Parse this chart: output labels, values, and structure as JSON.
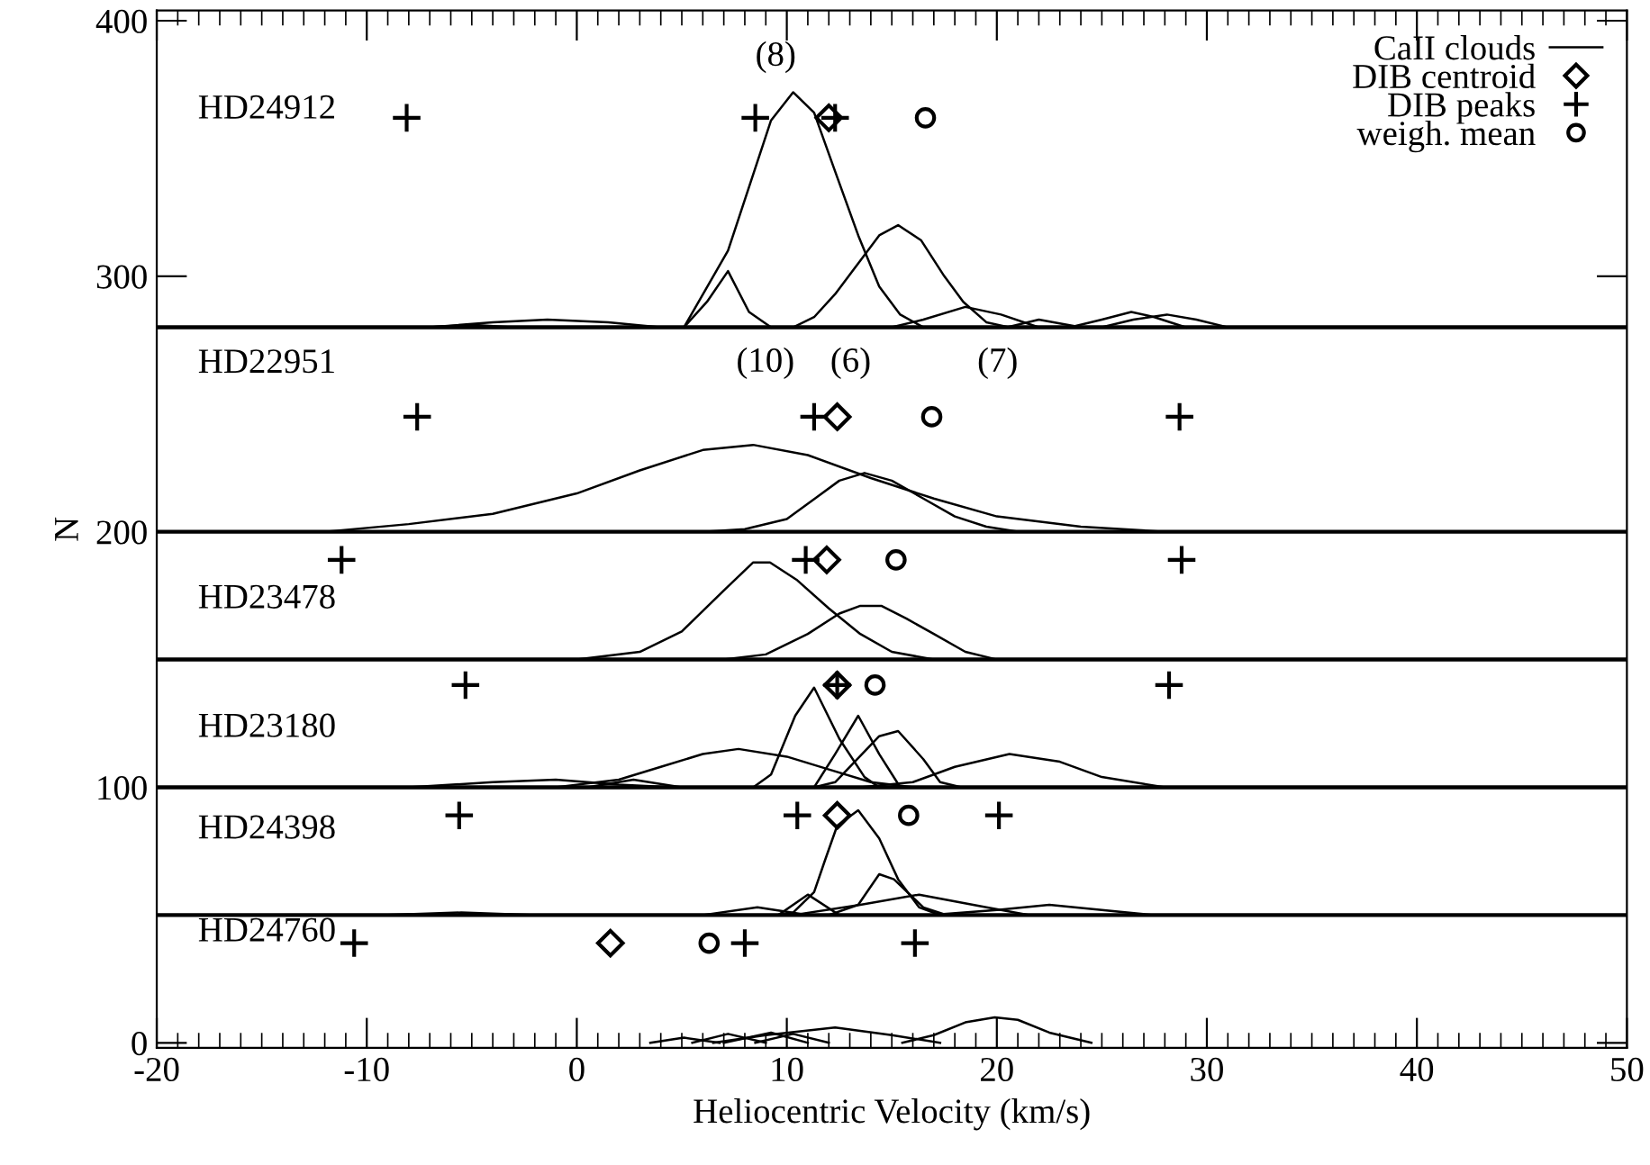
{
  "chart_data": {
    "type": "line",
    "xlabel": "Heliocentric Velocity (km/s)",
    "ylabel": "N",
    "xlim": [
      -20,
      50
    ],
    "ylim": [
      -2,
      404
    ],
    "xticks": [
      -20,
      -10,
      0,
      10,
      20,
      30,
      40,
      50
    ],
    "yticks": [
      0,
      100,
      200,
      300,
      400
    ],
    "grid": false,
    "legend": "top right",
    "series": [
      {
        "name": "CaII clouds",
        "color": "#000000",
        "x": [
          5.1,
          7.2,
          9.25,
          10.3,
          11.3,
          12.3,
          13.4,
          14.4,
          15.4,
          16.5
        ],
        "values": [
          280,
          310,
          361,
          372,
          364,
          341,
          316,
          296,
          285,
          280
        ]
      },
      {
        "color": "#000000",
        "x": [
          5.1,
          6.2,
          7.2,
          8.2,
          9.25
        ],
        "values": [
          280,
          290,
          302,
          286,
          280
        ]
      },
      {
        "color": "#000000",
        "x": [
          10.3,
          11.3,
          12.3,
          14.4,
          15.3,
          16.4,
          17.5,
          18.4,
          19.5,
          20.6
        ],
        "values": [
          280,
          284,
          293,
          316,
          320,
          314,
          300,
          290,
          282,
          280
        ]
      },
      {
        "color": "#000000",
        "x": [
          15,
          16.5,
          18.5,
          20.2,
          22
        ],
        "values": [
          280,
          283,
          288,
          285,
          280
        ]
      },
      {
        "color": "#000000",
        "x": [
          20.5,
          22,
          24
        ],
        "values": [
          280,
          283,
          280
        ]
      },
      {
        "color": "#000000",
        "x": [
          23.5,
          25,
          26.4,
          27.5,
          29
        ],
        "values": [
          280,
          283,
          286,
          284,
          280
        ]
      },
      {
        "color": "#000000",
        "x": [
          25,
          26.5,
          28.1,
          29.5,
          31
        ],
        "values": [
          280,
          283,
          285,
          283,
          280
        ]
      },
      {
        "color": "#000000",
        "x": [
          -7,
          -4,
          -1.4,
          1.5,
          4
        ],
        "values": [
          280,
          282,
          283,
          282,
          280
        ]
      },
      {
        "color": "#000000",
        "x": [
          -7,
          -5,
          -3
        ],
        "values": [
          280,
          281,
          280
        ]
      },
      {
        "color": "#000000",
        "x": [
          -12,
          -8,
          -4,
          0,
          3,
          6,
          8.4,
          11,
          14,
          17,
          20,
          24,
          28,
          32
        ],
        "values": [
          200,
          203,
          207,
          215,
          224,
          232,
          234,
          230,
          221,
          213,
          206,
          202,
          200,
          200
        ]
      },
      {
        "color": "#000000",
        "x": [
          6,
          8,
          10,
          11.5,
          12.5,
          13.7,
          15,
          16.5,
          18,
          19.5,
          21
        ],
        "values": [
          200,
          201,
          205,
          214,
          220,
          223,
          220,
          213,
          206,
          202,
          200
        ]
      },
      {
        "color": "#000000",
        "x": [
          0,
          3,
          5,
          7,
          8.4,
          9.2,
          10.5,
          12,
          13.5,
          15,
          17
        ],
        "values": [
          150,
          153,
          161,
          177,
          188,
          188,
          181,
          170,
          160,
          153,
          150
        ]
      },
      {
        "color": "#000000",
        "x": [
          7,
          9,
          11,
          12.5,
          13.5,
          14.5,
          15.7,
          17,
          18.5,
          20
        ],
        "values": [
          150,
          152,
          160,
          168,
          171,
          171,
          166,
          160,
          153,
          150
        ]
      },
      {
        "color": "#000000",
        "x": [
          8.4,
          9.25,
          10.4,
          11.3,
          12.5,
          13.7,
          14.4
        ],
        "values": [
          100,
          105,
          128,
          139,
          119,
          104,
          100
        ]
      },
      {
        "color": "#000000",
        "x": [
          11.3,
          12.3,
          13.4,
          14.4,
          15.4
        ],
        "values": [
          100,
          113,
          128,
          113,
          100
        ]
      },
      {
        "color": "#000000",
        "x": [
          11.3,
          12.3,
          14.4,
          15.3,
          16.5,
          17.3,
          18.3
        ],
        "values": [
          100,
          102,
          120,
          122,
          111,
          102,
          100
        ]
      },
      {
        "color": "#000000",
        "x": [
          -1,
          2,
          4,
          6,
          7.7,
          10,
          12,
          14,
          16
        ],
        "values": [
          100,
          103,
          108,
          113,
          115,
          112,
          107,
          102,
          100
        ]
      },
      {
        "color": "#000000",
        "x": [
          13.5,
          16,
          18,
          20.6,
          23,
          25,
          28
        ],
        "values": [
          100,
          102,
          108,
          113,
          110,
          104,
          100
        ]
      },
      {
        "color": "#000000",
        "x": [
          -8,
          -4,
          -1,
          2,
          4.5
        ],
        "values": [
          100,
          102,
          103,
          101,
          100
        ]
      },
      {
        "color": "#000000",
        "x": [
          0.5,
          2.7,
          5
        ],
        "values": [
          100,
          103,
          100
        ]
      },
      {
        "color": "#000000",
        "x": [
          9.5,
          10.3,
          11.3,
          11.8,
          12.4,
          13.4,
          14.4,
          15.3,
          16.3,
          17.3
        ],
        "values": [
          50,
          51,
          59,
          71,
          85,
          91,
          80,
          64,
          53,
          50
        ]
      },
      {
        "color": "#000000",
        "x": [
          12.0,
          13.4,
          14.4,
          15.1,
          16.5,
          17.6
        ],
        "values": [
          50,
          54,
          66,
          64,
          53,
          50
        ]
      },
      {
        "color": "#000000",
        "x": [
          10.3,
          13.5,
          16.3,
          19.5,
          21.5
        ],
        "values": [
          50,
          54,
          58,
          53,
          50
        ]
      },
      {
        "color": "#000000",
        "x": [
          16.9,
          20,
          22.5,
          25,
          27.4
        ],
        "values": [
          50,
          52,
          54,
          52,
          50
        ]
      },
      {
        "color": "#000000",
        "x": [
          9.6,
          11,
          12.5
        ],
        "values": [
          50,
          58,
          50
        ]
      },
      {
        "color": "#000000",
        "x": [
          6,
          8.6,
          11
        ],
        "values": [
          50,
          53,
          50
        ]
      },
      {
        "color": "#000000",
        "x": [
          -9,
          -5.5,
          -2
        ],
        "values": [
          50,
          51,
          50
        ]
      },
      {
        "color": "#000000",
        "x": [
          15.5,
          17,
          18.5,
          19.9,
          21,
          22.5,
          24.5
        ],
        "values": [
          0,
          3,
          8,
          10,
          9,
          4,
          0
        ]
      },
      {
        "color": "#000000",
        "x": [
          6.5,
          9,
          12.3,
          15,
          17.3
        ],
        "values": [
          0,
          3,
          6,
          3,
          0
        ]
      },
      {
        "color": "#000000",
        "x": [
          7,
          9.25,
          11
        ],
        "values": [
          0,
          4,
          0
        ]
      },
      {
        "color": "#000000",
        "x": [
          5.5,
          7.2,
          9
        ],
        "values": [
          0,
          3.5,
          0
        ]
      },
      {
        "color": "#000000",
        "x": [
          3.5,
          5.1,
          6.8
        ],
        "values": [
          0,
          2,
          0
        ]
      },
      {
        "color": "#000000",
        "x": [
          8.5,
          10.3,
          12
        ],
        "values": [
          0,
          3.5,
          0
        ]
      },
      {
        "name": "DIB centroid",
        "type": "scatter",
        "marker": "diamond",
        "color": "#000000",
        "x": [
          12.0,
          12.4,
          11.9,
          12.4,
          12.4,
          1.6
        ],
        "values": [
          362,
          245,
          189,
          140,
          89,
          39
        ]
      },
      {
        "name": "DIB peaks",
        "type": "scatter",
        "marker": "cross",
        "color": "#000000",
        "x": [
          -8.1,
          8.5,
          12.3,
          -7.6,
          11.3,
          28.7,
          -11.2,
          10.9,
          28.8,
          -5.3,
          12.4,
          28.2,
          -5.6,
          10.5,
          20.1,
          -10.6,
          8.0,
          16.1
        ],
        "values": [
          362,
          362,
          362,
          245,
          245,
          245,
          189,
          189,
          189,
          140,
          140,
          140,
          89,
          89,
          89,
          39,
          39,
          39
        ]
      },
      {
        "name": "weigh. mean",
        "type": "scatter",
        "marker": "circle",
        "color": "#000000",
        "x": [
          16.6,
          16.9,
          15.2,
          14.2,
          15.8,
          6.3
        ],
        "values": [
          362,
          245,
          189,
          140,
          89,
          39
        ]
      }
    ],
    "ref_lines": [
      {
        "axis": "y",
        "value": 280
      },
      {
        "axis": "y",
        "value": 200
      },
      {
        "axis": "y",
        "value": 150
      },
      {
        "axis": "y",
        "value": 100
      },
      {
        "axis": "y",
        "value": 50
      }
    ],
    "annotations": [
      "HD24912",
      "HD22951",
      "HD23478",
      "HD23180",
      "HD24398",
      "HD24760",
      "(8)",
      "(10)",
      "(6)",
      "(7)"
    ]
  }
}
